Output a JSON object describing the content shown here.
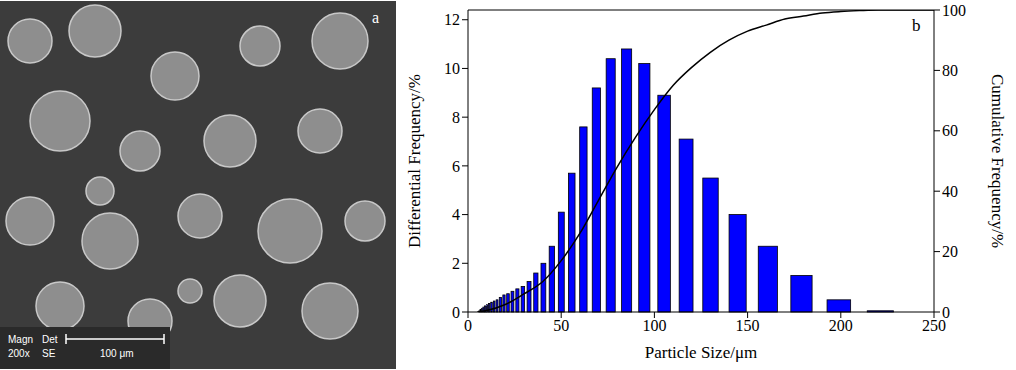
{
  "image_panel": {
    "letter": "a",
    "magnification_label": "Magn",
    "magnification": "200x",
    "detector_label": "Det",
    "detector": "SE",
    "scale_bar": "100 μm"
  },
  "chart_data": {
    "type": "histogram",
    "panel_label": "b",
    "x_label": "Particle Size/μm",
    "y_label": "Differential Frequency/%",
    "y2_label": "Cumulative Frequency/%",
    "bins": [
      5.7,
      6.3,
      7.0,
      7.8,
      8.7,
      9.7,
      10.7,
      11.9,
      13.3,
      14.8,
      16.4,
      18.3,
      20.3,
      22.6,
      25.1,
      27.9,
      31.0,
      34.5,
      38.3,
      42.6,
      47.4,
      52.7,
      58.6,
      65.2,
      72.5,
      80.6,
      89.6,
      99.6,
      110.8,
      123.2,
      137.0,
      152.3,
      169.4,
      188.4,
      209.5,
      232.9
    ],
    "values": [
      0.05,
      0.1,
      0.15,
      0.2,
      0.25,
      0.3,
      0.35,
      0.4,
      0.45,
      0.5,
      0.6,
      0.7,
      0.75,
      0.85,
      0.95,
      1.05,
      1.25,
      1.6,
      2.0,
      2.7,
      4.1,
      5.7,
      7.6,
      9.2,
      10.4,
      10.8,
      10.2,
      8.9,
      7.1,
      5.5,
      4.0,
      2.7,
      1.5,
      0.5,
      0.05
    ],
    "color": "#0000ff",
    "xlim": [
      0,
      250
    ],
    "xticks": [
      0,
      50,
      100,
      150,
      200,
      250
    ],
    "ylim": [
      0,
      12.4
    ],
    "yticks": [
      0,
      2,
      4,
      6,
      8,
      10,
      12
    ],
    "y2lim": [
      0,
      100
    ],
    "y2ticks": [
      0,
      20,
      40,
      60,
      80,
      100
    ],
    "grid": false,
    "series": [
      {
        "type": "line",
        "axis": "y2",
        "color": "#000000",
        "x": [
          5,
          10,
          20,
          30,
          40,
          50,
          60,
          70,
          80,
          90,
          100,
          110,
          120,
          130,
          140,
          150,
          160,
          170,
          180,
          190,
          200,
          210,
          220,
          230,
          240,
          250
        ],
        "values": [
          0,
          0.5,
          2.5,
          6,
          10,
          17,
          26,
          37,
          48,
          58,
          67,
          75,
          81,
          86,
          90,
          93,
          95,
          97,
          98,
          99,
          99.5,
          99.8,
          100,
          100,
          100,
          100
        ]
      }
    ]
  }
}
